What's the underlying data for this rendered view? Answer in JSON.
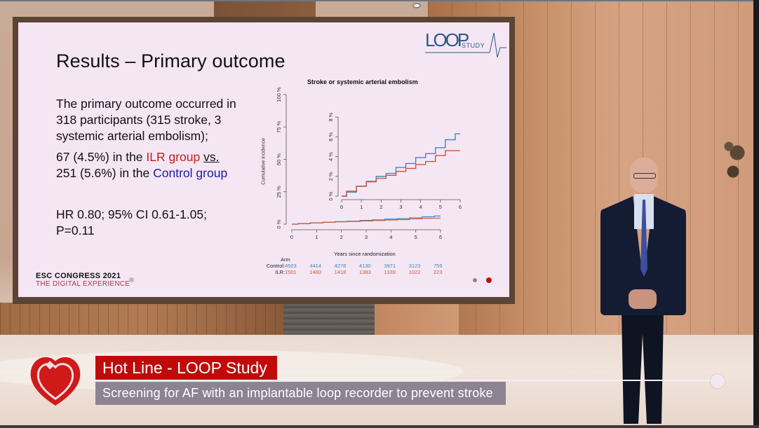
{
  "slide": {
    "title": "Results – Primary outcome",
    "body": {
      "para1": "The primary outcome occurred in 318 participants (315 stroke, 3 systemic arterial embolism);",
      "para2_a": "67 (4.5%) in the ",
      "para2_ilr": "ILR group",
      "para2_b": " ",
      "para2_vs": "vs.",
      "para2_c": "251 (5.6%) in the ",
      "para2_ctrl": "Control group",
      "stats_line1": "HR 0.80; 95% CI 0.61-1.05;",
      "stats_line2": "P=0.11"
    },
    "logo": {
      "loop": "LOOP",
      "study": "STUDY"
    },
    "footer": {
      "line1": "ESC CONGRESS 2021",
      "line2": "THE DIGITAL EXPERIENCE"
    },
    "colors": {
      "ilr": "#c0201a",
      "control": "#1c1ca0",
      "slide_bg": "#f5e6f4"
    }
  },
  "chart_data": {
    "type": "line",
    "title": "Stroke or systemic arterial embolism",
    "xlabel": "Years since randomization",
    "ylabel": "Cumulative incidence",
    "xlim": [
      0,
      6
    ],
    "ylim": [
      0,
      100
    ],
    "x_ticks": [
      "0",
      "1",
      "2",
      "3",
      "4",
      "5",
      "6"
    ],
    "y_ticks": [
      "0 %",
      "25 %",
      "50 %",
      "75 %",
      "100 %"
    ],
    "inset": {
      "xlim": [
        0,
        6
      ],
      "ylim": [
        0,
        8
      ],
      "x_ticks": [
        "0",
        "1",
        "2",
        "3",
        "4",
        "5",
        "6"
      ],
      "y_ticks": [
        "0 %",
        "2 %",
        "4 %",
        "6 %",
        "8 %"
      ]
    },
    "x": [
      0,
      0.5,
      1,
      1.5,
      2,
      2.5,
      3,
      3.5,
      4,
      4.5,
      5,
      5.5,
      6
    ],
    "series": [
      {
        "name": "Control",
        "color": "#3a8ac0",
        "values": [
          0,
          0.4,
          1.0,
          1.5,
          2.0,
          2.3,
          2.9,
          3.3,
          3.9,
          4.3,
          4.9,
          5.7,
          6.3
        ]
      },
      {
        "name": "ILR",
        "color": "#c9573a",
        "values": [
          0,
          0.5,
          1.0,
          1.45,
          1.8,
          2.1,
          2.5,
          2.8,
          3.2,
          3.5,
          4.1,
          4.6,
          4.6
        ]
      }
    ],
    "risk_table": {
      "header": "Arm",
      "rows": [
        {
          "label": "Control:",
          "values": [
            "4503",
            "4414",
            "4278",
            "4130",
            "3971",
            "3123",
            "759"
          ]
        },
        {
          "label": "ILR:",
          "values": [
            "1501",
            "1460",
            "1418",
            "1383",
            "1339",
            "1022",
            "223"
          ]
        }
      ]
    }
  },
  "lower_third": {
    "title": "Hot Line - LOOP Study",
    "subtitle": "Screening for AF with an implantable loop recorder to prevent stroke",
    "title_bg": "#c00a0a",
    "subtitle_bg": "#8d8393"
  }
}
